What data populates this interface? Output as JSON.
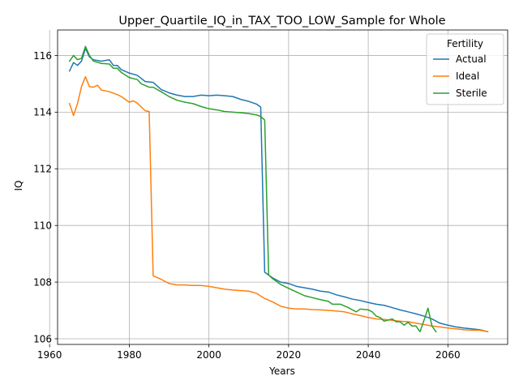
{
  "chart_data": {
    "type": "line",
    "title": "Upper_Quartile_IQ_in_TAX_TOO_LOW_Sample for Whole",
    "xlabel": "Years",
    "ylabel": "IQ",
    "xlim": [
      1962,
      2075
    ],
    "ylim": [
      105.8,
      116.9
    ],
    "xticks": [
      1960,
      1980,
      2000,
      2020,
      2040,
      2060
    ],
    "xtick_labels": [
      "1960",
      "1980",
      "2000",
      "2020",
      "2040",
      "2060"
    ],
    "yticks": [
      106,
      108,
      110,
      112,
      114,
      116
    ],
    "ytick_labels": [
      "106",
      "108",
      "110",
      "112",
      "114",
      "116"
    ],
    "grid": true,
    "legend": {
      "title": "Fertility",
      "placement": "top-right"
    },
    "series": [
      {
        "name": "Actual",
        "color": "#1f77b4",
        "points": [
          [
            1965,
            115.45
          ],
          [
            1966,
            115.75
          ],
          [
            1967,
            115.65
          ],
          [
            1968,
            115.8
          ],
          [
            1969,
            116.25
          ],
          [
            1970,
            115.95
          ],
          [
            1971,
            115.85
          ],
          [
            1973,
            115.8
          ],
          [
            1975,
            115.85
          ],
          [
            1976,
            115.65
          ],
          [
            1977,
            115.65
          ],
          [
            1978,
            115.5
          ],
          [
            1980,
            115.38
          ],
          [
            1982,
            115.3
          ],
          [
            1984,
            115.08
          ],
          [
            1986,
            115.05
          ],
          [
            1988,
            114.8
          ],
          [
            1990,
            114.68
          ],
          [
            1992,
            114.6
          ],
          [
            1994,
            114.55
          ],
          [
            1996,
            114.55
          ],
          [
            1998,
            114.6
          ],
          [
            2000,
            114.58
          ],
          [
            2002,
            114.6
          ],
          [
            2004,
            114.58
          ],
          [
            2006,
            114.55
          ],
          [
            2008,
            114.45
          ],
          [
            2010,
            114.38
          ],
          [
            2012,
            114.28
          ],
          [
            2013,
            114.18
          ],
          [
            2014,
            108.35
          ],
          [
            2016,
            108.15
          ],
          [
            2018,
            108.0
          ],
          [
            2020,
            107.95
          ],
          [
            2022,
            107.85
          ],
          [
            2024,
            107.8
          ],
          [
            2026,
            107.75
          ],
          [
            2028,
            107.68
          ],
          [
            2030,
            107.65
          ],
          [
            2032,
            107.55
          ],
          [
            2034,
            107.48
          ],
          [
            2036,
            107.4
          ],
          [
            2038,
            107.35
          ],
          [
            2040,
            107.28
          ],
          [
            2042,
            107.22
          ],
          [
            2044,
            107.18
          ],
          [
            2046,
            107.1
          ],
          [
            2048,
            107.02
          ],
          [
            2050,
            106.95
          ],
          [
            2052,
            106.88
          ],
          [
            2054,
            106.8
          ],
          [
            2056,
            106.7
          ],
          [
            2058,
            106.55
          ],
          [
            2060,
            106.48
          ],
          [
            2062,
            106.42
          ],
          [
            2064,
            106.38
          ],
          [
            2066,
            106.35
          ],
          [
            2068,
            106.32
          ],
          [
            2070,
            106.25
          ]
        ]
      },
      {
        "name": "Ideal",
        "color": "#ff7f0e",
        "points": [
          [
            1965,
            114.3
          ],
          [
            1966,
            113.88
          ],
          [
            1967,
            114.3
          ],
          [
            1968,
            114.9
          ],
          [
            1969,
            115.25
          ],
          [
            1970,
            114.9
          ],
          [
            1971,
            114.88
          ],
          [
            1972,
            114.95
          ],
          [
            1973,
            114.78
          ],
          [
            1975,
            114.72
          ],
          [
            1977,
            114.62
          ],
          [
            1978,
            114.55
          ],
          [
            1980,
            114.35
          ],
          [
            1981,
            114.4
          ],
          [
            1982,
            114.32
          ],
          [
            1984,
            114.05
          ],
          [
            1985,
            114.02
          ],
          [
            1986,
            108.22
          ],
          [
            1988,
            108.1
          ],
          [
            1990,
            107.95
          ],
          [
            1992,
            107.9
          ],
          [
            1994,
            107.9
          ],
          [
            1996,
            107.88
          ],
          [
            1998,
            107.88
          ],
          [
            2000,
            107.85
          ],
          [
            2002,
            107.8
          ],
          [
            2004,
            107.75
          ],
          [
            2006,
            107.72
          ],
          [
            2008,
            107.7
          ],
          [
            2010,
            107.68
          ],
          [
            2012,
            107.6
          ],
          [
            2014,
            107.42
          ],
          [
            2016,
            107.3
          ],
          [
            2018,
            107.15
          ],
          [
            2020,
            107.08
          ],
          [
            2022,
            107.05
          ],
          [
            2024,
            107.05
          ],
          [
            2026,
            107.03
          ],
          [
            2028,
            107.02
          ],
          [
            2030,
            107.0
          ],
          [
            2032,
            106.98
          ],
          [
            2034,
            106.95
          ],
          [
            2036,
            106.88
          ],
          [
            2038,
            106.82
          ],
          [
            2040,
            106.75
          ],
          [
            2042,
            106.7
          ],
          [
            2044,
            106.68
          ],
          [
            2046,
            106.65
          ],
          [
            2048,
            106.62
          ],
          [
            2050,
            106.6
          ],
          [
            2052,
            106.55
          ],
          [
            2054,
            106.5
          ],
          [
            2056,
            106.45
          ],
          [
            2058,
            106.42
          ],
          [
            2060,
            106.38
          ],
          [
            2062,
            106.35
          ],
          [
            2064,
            106.32
          ],
          [
            2066,
            106.3
          ],
          [
            2068,
            106.3
          ],
          [
            2070,
            106.25
          ]
        ]
      },
      {
        "name": "Sterile",
        "color": "#2ca02c",
        "points": [
          [
            1965,
            115.8
          ],
          [
            1966,
            116.0
          ],
          [
            1967,
            115.85
          ],
          [
            1968,
            115.9
          ],
          [
            1969,
            116.32
          ],
          [
            1970,
            116.0
          ],
          [
            1971,
            115.8
          ],
          [
            1973,
            115.72
          ],
          [
            1975,
            115.7
          ],
          [
            1976,
            115.55
          ],
          [
            1977,
            115.55
          ],
          [
            1978,
            115.4
          ],
          [
            1980,
            115.22
          ],
          [
            1982,
            115.15
          ],
          [
            1983,
            115.0
          ],
          [
            1985,
            114.88
          ],
          [
            1986,
            114.88
          ],
          [
            1988,
            114.72
          ],
          [
            1990,
            114.55
          ],
          [
            1992,
            114.42
          ],
          [
            1994,
            114.35
          ],
          [
            1996,
            114.3
          ],
          [
            1998,
            114.2
          ],
          [
            2000,
            114.12
          ],
          [
            2002,
            114.08
          ],
          [
            2004,
            114.02
          ],
          [
            2006,
            114.0
          ],
          [
            2008,
            113.98
          ],
          [
            2010,
            113.95
          ],
          [
            2012,
            113.9
          ],
          [
            2013,
            113.85
          ],
          [
            2014,
            113.72
          ],
          [
            2015,
            108.25
          ],
          [
            2016,
            108.12
          ],
          [
            2018,
            107.92
          ],
          [
            2020,
            107.78
          ],
          [
            2022,
            107.65
          ],
          [
            2024,
            107.52
          ],
          [
            2026,
            107.45
          ],
          [
            2028,
            107.38
          ],
          [
            2030,
            107.32
          ],
          [
            2031,
            107.22
          ],
          [
            2033,
            107.22
          ],
          [
            2035,
            107.1
          ],
          [
            2036,
            107.02
          ],
          [
            2037,
            106.95
          ],
          [
            2038,
            107.05
          ],
          [
            2040,
            107.02
          ],
          [
            2041,
            106.95
          ],
          [
            2042,
            106.8
          ],
          [
            2043,
            106.75
          ],
          [
            2044,
            106.62
          ],
          [
            2046,
            106.7
          ],
          [
            2047,
            106.6
          ],
          [
            2048,
            106.6
          ],
          [
            2049,
            106.48
          ],
          [
            2050,
            106.58
          ],
          [
            2051,
            106.45
          ],
          [
            2052,
            106.45
          ],
          [
            2053,
            106.25
          ],
          [
            2054,
            106.65
          ],
          [
            2055,
            107.08
          ],
          [
            2056,
            106.45
          ],
          [
            2057,
            106.25
          ]
        ]
      }
    ]
  }
}
